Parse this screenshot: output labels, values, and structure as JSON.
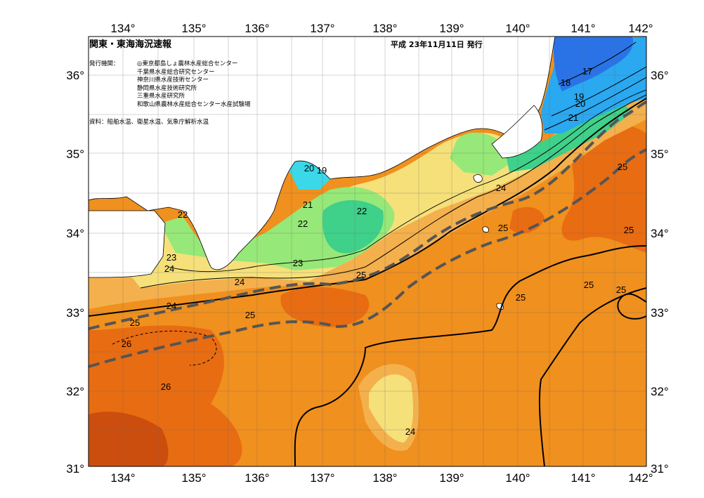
{
  "map": {
    "title": "関東・東海海況速報",
    "issued": "平成 23年11月11日 発行",
    "issuers_label": "発行機関：",
    "issuers": [
      "◎東京都島しょ農林水産総合センター",
      "千葉県水産総合研究センター",
      "神奈川県水産技術センター",
      "静岡県水産技術研究所",
      "三重県水産研究所",
      "和歌山県農林水産総合センター水産試験場"
    ],
    "sources": "資料：船舶水温、衛星水温、気象庁解析水温",
    "lon_labels": [
      "134°",
      "135°",
      "136°",
      "137°",
      "138°",
      "139°",
      "140°",
      "141°",
      "142°"
    ],
    "lat_labels": [
      "36°",
      "35°",
      "34°",
      "33°",
      "32°",
      "31°"
    ],
    "temperature_labels": [
      "17",
      "18",
      "19",
      "20",
      "21",
      "20",
      "19",
      "21",
      "22",
      "22",
      "22",
      "23",
      "23",
      "24",
      "24",
      "24",
      "24",
      "25",
      "25",
      "25",
      "25",
      "25",
      "25",
      "25",
      "25",
      "25",
      "26",
      "26",
      "24"
    ],
    "colors": {
      "land": "#ffffff",
      "t_lt18": "#2a73e6",
      "t_18_20": "#2aa8f0",
      "t_20_21": "#3ad8e8",
      "t_21_22": "#3fd08a",
      "t_22_23": "#96e878",
      "t_23_24": "#f5e07a",
      "t_24_25": "#f4b04c",
      "t_25_26": "#f0901e",
      "t_26_27": "#e86c12",
      "t_gt27": "#cc4e0e",
      "kuroshio_axis": "#555555"
    }
  }
}
